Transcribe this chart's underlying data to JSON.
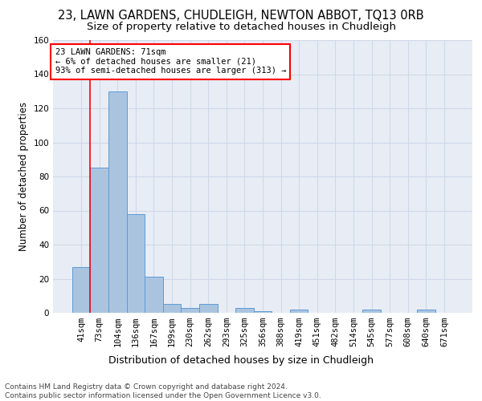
{
  "title": "23, LAWN GARDENS, CHUDLEIGH, NEWTON ABBOT, TQ13 0RB",
  "subtitle": "Size of property relative to detached houses in Chudleigh",
  "xlabel": "Distribution of detached houses by size in Chudleigh",
  "ylabel": "Number of detached properties",
  "footer_line1": "Contains HM Land Registry data © Crown copyright and database right 2024.",
  "footer_line2": "Contains public sector information licensed under the Open Government Licence v3.0.",
  "bar_labels": [
    "41sqm",
    "73sqm",
    "104sqm",
    "136sqm",
    "167sqm",
    "199sqm",
    "230sqm",
    "262sqm",
    "293sqm",
    "325sqm",
    "356sqm",
    "388sqm",
    "419sqm",
    "451sqm",
    "482sqm",
    "514sqm",
    "545sqm",
    "577sqm",
    "608sqm",
    "640sqm",
    "671sqm"
  ],
  "bar_values": [
    27,
    85,
    130,
    58,
    21,
    5,
    3,
    5,
    0,
    3,
    1,
    0,
    2,
    0,
    0,
    0,
    2,
    0,
    0,
    2,
    0
  ],
  "bar_color": "#aac4e0",
  "bar_edge_color": "#5b9bd5",
  "annotation_text": "23 LAWN GARDENS: 71sqm\n← 6% of detached houses are smaller (21)\n93% of semi-detached houses are larger (313) →",
  "annotation_box_color": "white",
  "annotation_box_edge_color": "red",
  "vline_x_index": 1,
  "vline_color": "red",
  "vline_lw": 1.2,
  "ylim": [
    0,
    160
  ],
  "yticks": [
    0,
    20,
    40,
    60,
    80,
    100,
    120,
    140,
    160
  ],
  "grid_color": "#d0d8e8",
  "bg_color": "#e8edf5",
  "title_fontsize": 10.5,
  "subtitle_fontsize": 9.5,
  "xlabel_fontsize": 9,
  "ylabel_fontsize": 8.5,
  "tick_fontsize": 7.5,
  "annotation_fontsize": 7.5,
  "footer_fontsize": 6.5
}
